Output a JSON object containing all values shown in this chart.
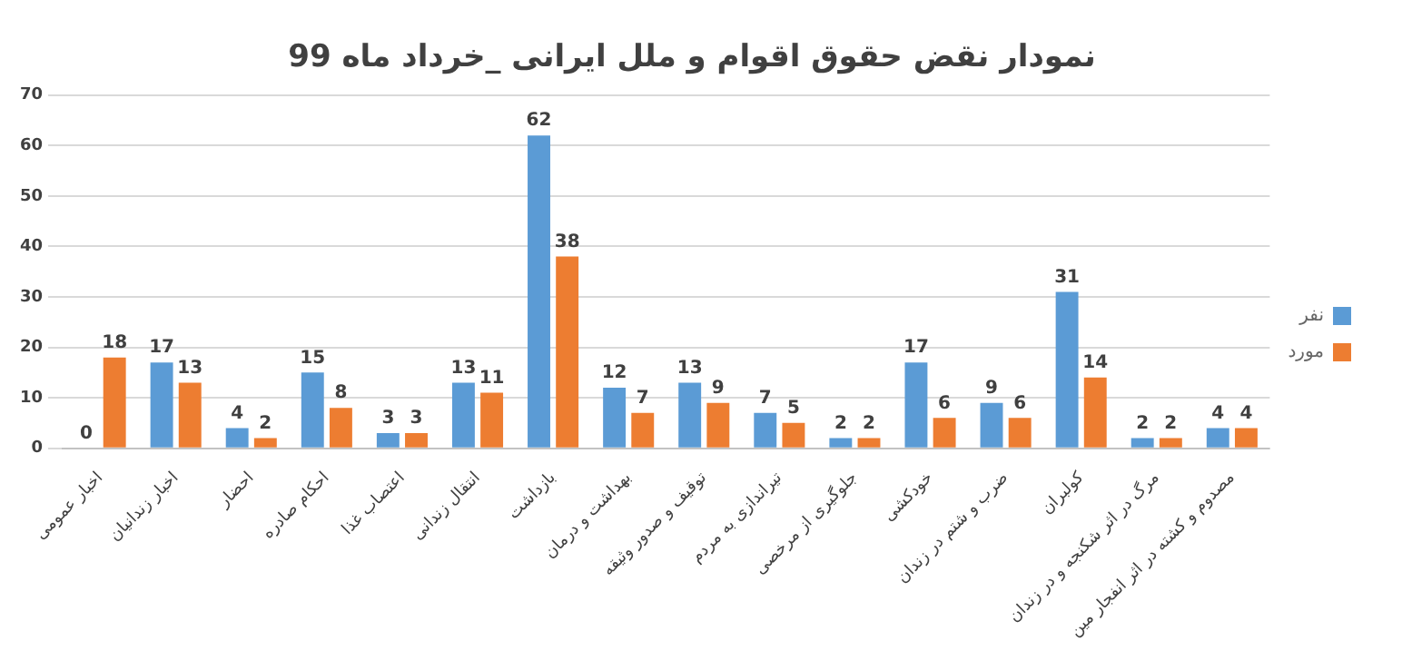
{
  "chart_data": {
    "type": "bar",
    "title": "نمودار نقض حقوق اقوام و ملل ایرانی _خرداد ماه 99",
    "categories": [
      "اخبار عمومی",
      "اخبار زندانیان",
      "احضار",
      "احکام صادره",
      "اعتصاب غذا",
      "انتقال زندانی",
      "بازداشت",
      "بهداشت و درمان",
      "توقیف و صدور وثیقه",
      "تیراندازی به مردم",
      "جلوگیری از مرخصی",
      "خودکشی",
      "ضرب و شتم در زندان",
      "کولبران",
      "مرگ در اثر شکنجه و در زندان",
      "مصدوم و کشته در اثر انفجار مین"
    ],
    "series": [
      {
        "name": "نفر",
        "color": "#5b9bd5",
        "values": [
          0,
          17,
          4,
          15,
          3,
          13,
          62,
          12,
          13,
          7,
          2,
          17,
          9,
          31,
          2,
          4
        ]
      },
      {
        "name": "مورد",
        "color": "#ed7d31",
        "values": [
          18,
          13,
          2,
          8,
          3,
          11,
          38,
          7,
          9,
          5,
          2,
          6,
          6,
          14,
          2,
          4
        ]
      }
    ],
    "ylim": [
      0,
      70
    ],
    "yticks": [
      0,
      10,
      20,
      30,
      40,
      50,
      60,
      70
    ],
    "grid": "y",
    "legend": "right",
    "data_labels": true
  }
}
